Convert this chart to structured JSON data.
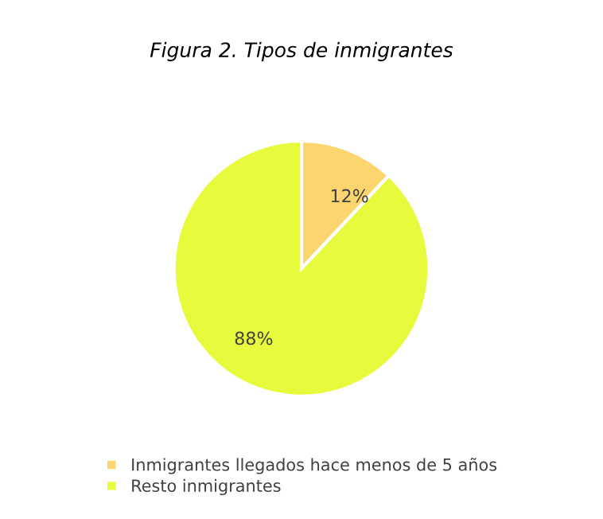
{
  "chart_data": {
    "type": "pie",
    "title": "Figura 2. Tipos de inmigrantes",
    "categories": [
      "Inmigrantes llegados hace menos de 5 años",
      "Resto inmigrantes"
    ],
    "values": [
      12,
      88
    ],
    "colors": [
      "#fdd56e",
      "#e7fa3c"
    ],
    "value_labels": [
      "12%",
      "88%"
    ],
    "legend": "bottom"
  }
}
